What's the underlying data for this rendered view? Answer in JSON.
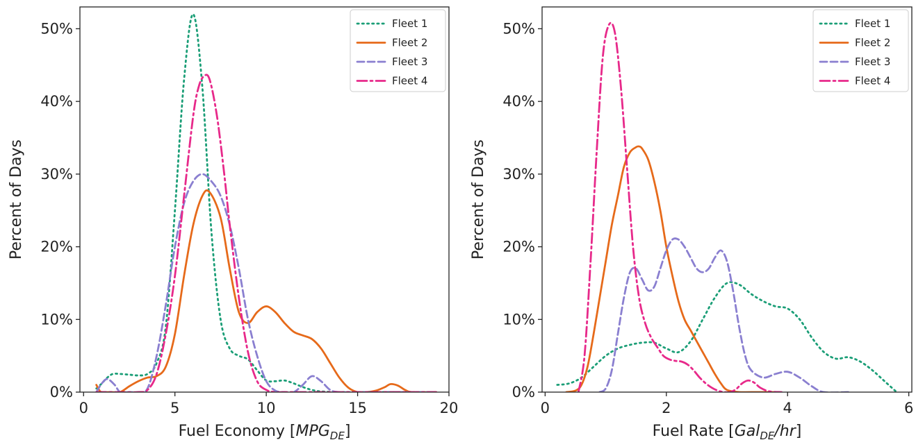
{
  "chart_data": [
    {
      "type": "line",
      "xlabel": "Fuel Economy [",
      "xlabel_math": "MPG",
      "xlabel_sub": "DE",
      "xlabel_end": "]",
      "ylabel": "Percent of Days",
      "xlim": [
        -0.2,
        20.0
      ],
      "ylim": [
        0,
        0.53
      ],
      "xticks": [
        0,
        5,
        10,
        15,
        20
      ],
      "xtick_labels": [
        "0",
        "5",
        "10",
        "15",
        "20"
      ],
      "yticks": [
        0,
        0.1,
        0.2,
        0.3,
        0.4,
        0.5
      ],
      "ytick_labels": [
        "0%",
        "10%",
        "20%",
        "30%",
        "40%",
        "50%"
      ],
      "legend": "top-right",
      "grid": false,
      "series": [
        {
          "name": "Fleet 1",
          "color": "#1b9e77",
          "dash": "dotted",
          "x": [
            0.7,
            1.0,
            1.3,
            1.6,
            2.0,
            2.5,
            3.0,
            3.5,
            4.0,
            4.5,
            5.0,
            5.5,
            6.0,
            6.5,
            7.0,
            7.5,
            8.0,
            8.5,
            9.0,
            9.5,
            10.0,
            10.5,
            11.0,
            11.5,
            12.0,
            12.5,
            13.0,
            14.0,
            15.0,
            16.0,
            17.0,
            19.3
          ],
          "y": [
            0.005,
            0.012,
            0.02,
            0.025,
            0.025,
            0.024,
            0.023,
            0.025,
            0.04,
            0.09,
            0.25,
            0.43,
            0.52,
            0.42,
            0.22,
            0.1,
            0.06,
            0.05,
            0.045,
            0.03,
            0.016,
            0.015,
            0.016,
            0.012,
            0.007,
            0.003,
            0.001,
            0.0,
            0.0,
            0.0,
            0.0,
            0.0
          ]
        },
        {
          "name": "Fleet 2",
          "color": "#e66a1a",
          "dash": "solid",
          "x": [
            0.7,
            0.85,
            1.0,
            1.5,
            2.0,
            2.5,
            3.0,
            3.5,
            4.0,
            4.5,
            5.0,
            5.5,
            6.0,
            6.5,
            6.9,
            7.5,
            8.0,
            8.5,
            9.0,
            9.5,
            10.0,
            10.5,
            11.0,
            11.5,
            12.0,
            12.5,
            13.0,
            13.5,
            14.0,
            14.5,
            15.0,
            15.5,
            16.0,
            16.5,
            16.8,
            17.2,
            17.6,
            18.0,
            19.3
          ],
          "y": [
            0.01,
            0.003,
            0.0,
            0.0,
            0.0,
            0.008,
            0.015,
            0.02,
            0.022,
            0.035,
            0.08,
            0.16,
            0.23,
            0.27,
            0.275,
            0.24,
            0.17,
            0.11,
            0.095,
            0.11,
            0.118,
            0.11,
            0.095,
            0.083,
            0.078,
            0.073,
            0.06,
            0.04,
            0.02,
            0.006,
            0.0,
            0.0,
            0.002,
            0.007,
            0.011,
            0.009,
            0.003,
            0.0,
            0.0
          ]
        },
        {
          "name": "Fleet 3",
          "color": "#8a7fd0",
          "dash": "dashed",
          "x": [
            0.7,
            1.0,
            1.3,
            1.7,
            2.0,
            2.5,
            3.0,
            3.5,
            4.0,
            4.5,
            5.0,
            5.5,
            6.0,
            6.5,
            7.0,
            7.5,
            8.0,
            8.5,
            9.0,
            9.5,
            10.0,
            10.5,
            11.0,
            11.5,
            12.0,
            12.5,
            13.0,
            13.5,
            14.0,
            15.0,
            16.0,
            17.0,
            18.0,
            19.3
          ],
          "y": [
            0.0,
            0.012,
            0.018,
            0.01,
            0.0,
            0.0,
            0.0,
            0.005,
            0.05,
            0.12,
            0.2,
            0.26,
            0.29,
            0.3,
            0.29,
            0.27,
            0.23,
            0.17,
            0.1,
            0.05,
            0.015,
            0.002,
            0.0,
            0.0,
            0.01,
            0.022,
            0.015,
            0.003,
            0.0,
            0.0,
            0.0,
            0.0,
            0.0,
            0.0
          ]
        },
        {
          "name": "Fleet 4",
          "color": "#e7298a",
          "dash": "dashdot",
          "x": [
            0.7,
            2.0,
            3.0,
            3.5,
            4.0,
            4.5,
            5.0,
            5.5,
            6.0,
            6.3,
            6.6,
            6.9,
            7.3,
            7.7,
            8.0,
            8.5,
            9.0,
            9.5,
            10.0,
            10.5,
            11.0,
            12.0,
            14.0,
            16.0,
            18.0,
            19.3
          ],
          "y": [
            0.0,
            0.0,
            0.0,
            0.003,
            0.025,
            0.08,
            0.16,
            0.27,
            0.38,
            0.42,
            0.435,
            0.43,
            0.38,
            0.3,
            0.23,
            0.13,
            0.055,
            0.015,
            0.003,
            0.0,
            0.0,
            0.0,
            0.0,
            0.0,
            0.0,
            0.0
          ]
        }
      ]
    },
    {
      "type": "line",
      "xlabel": "Fuel Rate [",
      "xlabel_math": "Gal",
      "xlabel_sub": "DE",
      "xlabel_end": "/hr]",
      "ylabel": "Percent of Days",
      "xlim": [
        -0.05,
        6.05
      ],
      "ylim": [
        0,
        0.53
      ],
      "xticks": [
        0,
        2,
        4,
        6
      ],
      "xtick_labels": [
        "0",
        "2",
        "4",
        "6"
      ],
      "yticks": [
        0,
        0.1,
        0.2,
        0.3,
        0.4,
        0.5
      ],
      "ytick_labels": [
        "0%",
        "10%",
        "20%",
        "30%",
        "40%",
        "50%"
      ],
      "legend": "top-right",
      "grid": false,
      "series": [
        {
          "name": "Fleet 1",
          "color": "#1b9e77",
          "dash": "dotted",
          "x": [
            0.2,
            0.4,
            0.6,
            0.8,
            1.0,
            1.2,
            1.4,
            1.6,
            1.8,
            2.0,
            2.2,
            2.4,
            2.6,
            2.8,
            3.0,
            3.2,
            3.4,
            3.6,
            3.8,
            4.0,
            4.2,
            4.4,
            4.6,
            4.8,
            5.0,
            5.2,
            5.4,
            5.6,
            5.8
          ],
          "y": [
            0.01,
            0.012,
            0.02,
            0.035,
            0.05,
            0.06,
            0.065,
            0.068,
            0.068,
            0.06,
            0.055,
            0.07,
            0.1,
            0.13,
            0.15,
            0.148,
            0.135,
            0.125,
            0.118,
            0.115,
            0.1,
            0.075,
            0.055,
            0.046,
            0.048,
            0.042,
            0.03,
            0.015,
            0.0
          ]
        },
        {
          "name": "Fleet 2",
          "color": "#e66a1a",
          "dash": "solid",
          "x": [
            0.35,
            0.5,
            0.6,
            0.7,
            0.8,
            0.9,
            1.0,
            1.1,
            1.2,
            1.3,
            1.4,
            1.5,
            1.55,
            1.6,
            1.7,
            1.8,
            1.9,
            2.0,
            2.1,
            2.2,
            2.3,
            2.4,
            2.5,
            2.6,
            2.7,
            2.8,
            2.9,
            3.0,
            3.2,
            3.4,
            3.8
          ],
          "y": [
            0.0,
            0.002,
            0.01,
            0.035,
            0.08,
            0.13,
            0.18,
            0.23,
            0.27,
            0.31,
            0.33,
            0.337,
            0.338,
            0.335,
            0.32,
            0.29,
            0.25,
            0.2,
            0.16,
            0.125,
            0.1,
            0.085,
            0.07,
            0.055,
            0.04,
            0.025,
            0.012,
            0.003,
            0.0,
            0.0,
            0.0
          ]
        },
        {
          "name": "Fleet 3",
          "color": "#8a7fd0",
          "dash": "dashed",
          "x": [
            0.9,
            1.0,
            1.1,
            1.2,
            1.3,
            1.4,
            1.5,
            1.6,
            1.7,
            1.8,
            1.9,
            2.0,
            2.1,
            2.2,
            2.3,
            2.4,
            2.5,
            2.6,
            2.7,
            2.8,
            2.9,
            3.0,
            3.1,
            3.2,
            3.3,
            3.4,
            3.6,
            3.8,
            4.0,
            4.2,
            4.4,
            4.6,
            5.0
          ],
          "y": [
            0.0,
            0.005,
            0.03,
            0.08,
            0.13,
            0.165,
            0.17,
            0.155,
            0.14,
            0.145,
            0.17,
            0.195,
            0.21,
            0.21,
            0.2,
            0.185,
            0.17,
            0.165,
            0.17,
            0.185,
            0.195,
            0.18,
            0.14,
            0.09,
            0.05,
            0.03,
            0.02,
            0.025,
            0.028,
            0.02,
            0.008,
            0.0,
            0.0
          ]
        },
        {
          "name": "Fleet 4",
          "color": "#e7298a",
          "dash": "dashdot",
          "x": [
            0.55,
            0.65,
            0.75,
            0.85,
            0.95,
            1.05,
            1.15,
            1.25,
            1.35,
            1.45,
            1.55,
            1.65,
            1.75,
            1.85,
            1.95,
            2.05,
            2.15,
            2.25,
            2.35,
            2.45,
            2.55,
            2.65,
            2.75,
            2.85,
            2.95,
            3.05,
            3.15,
            3.25,
            3.35,
            3.45,
            3.55,
            3.7,
            3.9
          ],
          "y": [
            0.0,
            0.05,
            0.18,
            0.33,
            0.46,
            0.505,
            0.495,
            0.42,
            0.31,
            0.2,
            0.13,
            0.095,
            0.075,
            0.062,
            0.05,
            0.045,
            0.043,
            0.042,
            0.038,
            0.03,
            0.02,
            0.012,
            0.006,
            0.002,
            0.0,
            0.0,
            0.004,
            0.012,
            0.016,
            0.013,
            0.006,
            0.001,
            0.0
          ]
        }
      ]
    }
  ]
}
